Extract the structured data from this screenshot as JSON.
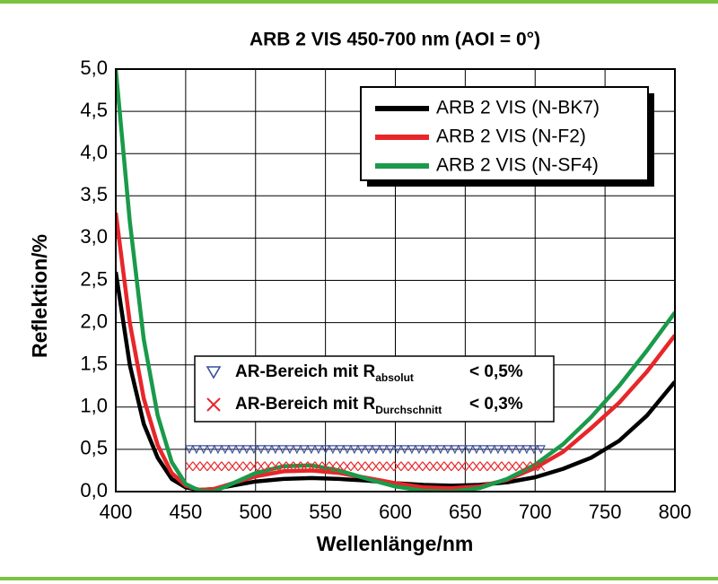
{
  "chart_data": {
    "type": "line",
    "title": "ARB 2 VIS 450-700 nm (AOI = 0°)",
    "x_label": "Wellenlänge/nm",
    "y_label": "Reflektion/%",
    "x": [
      400,
      410,
      420,
      430,
      440,
      450,
      460,
      470,
      480,
      500,
      520,
      540,
      560,
      580,
      600,
      620,
      640,
      660,
      680,
      700,
      720,
      740,
      760,
      780,
      800
    ],
    "series": [
      {
        "name": "ARB 2 VIS (N-BK7)",
        "color": "#000000",
        "values": [
          2.6,
          1.5,
          0.8,
          0.4,
          0.15,
          0.05,
          0.02,
          0.03,
          0.06,
          0.12,
          0.15,
          0.16,
          0.15,
          0.13,
          0.1,
          0.08,
          0.07,
          0.08,
          0.11,
          0.17,
          0.27,
          0.4,
          0.6,
          0.9,
          1.3
        ]
      },
      {
        "name": "ARB 2 VIS (N-F2)",
        "color": "#e8262a",
        "values": [
          3.3,
          2.0,
          1.1,
          0.55,
          0.22,
          0.07,
          0.02,
          0.03,
          0.08,
          0.18,
          0.24,
          0.25,
          0.22,
          0.16,
          0.1,
          0.05,
          0.04,
          0.06,
          0.14,
          0.28,
          0.47,
          0.75,
          1.05,
          1.42,
          1.85
        ]
      },
      {
        "name": "ARB 2 VIS (N-SF4)",
        "color": "#1a9a4a",
        "values": [
          5.0,
          3.2,
          1.8,
          0.9,
          0.35,
          0.09,
          0.01,
          0.0,
          0.07,
          0.22,
          0.3,
          0.31,
          0.25,
          0.15,
          0.06,
          0.01,
          0.0,
          0.04,
          0.15,
          0.32,
          0.56,
          0.88,
          1.25,
          1.67,
          2.12
        ]
      }
    ],
    "ar_ranges": [
      {
        "label": "AR-Bereich mit R",
        "subscript": "absolut",
        "threshold": "< 0,5%",
        "level": 0.5,
        "x_range": [
          450,
          705
        ],
        "marker": "triangle",
        "color": "#3c4fa0"
      },
      {
        "label": "AR-Bereich mit R",
        "subscript": "Durchschnitt",
        "threshold": "< 0,3%",
        "level": 0.3,
        "x_range": [
          450,
          705
        ],
        "marker": "cross",
        "color": "#e8262a"
      }
    ],
    "xlim": [
      400,
      800
    ],
    "xticks": [
      400,
      450,
      500,
      550,
      600,
      650,
      700,
      750,
      800
    ],
    "ylim": [
      0,
      5
    ],
    "yticks": [
      {
        "value": 0,
        "label": "0,0"
      },
      {
        "value": 0.5,
        "label": "0,5"
      },
      {
        "value": 1,
        "label": "1,0"
      },
      {
        "value": 1.5,
        "label": "1,5"
      },
      {
        "value": 2,
        "label": "2,0"
      },
      {
        "value": 2.5,
        "label": "2,5"
      },
      {
        "value": 3,
        "label": "3,0"
      },
      {
        "value": 3.5,
        "label": "3,5"
      },
      {
        "value": 4,
        "label": "4,0"
      },
      {
        "value": 4.5,
        "label": "4,5"
      },
      {
        "value": 5,
        "label": "5,0"
      }
    ],
    "grid": true
  }
}
